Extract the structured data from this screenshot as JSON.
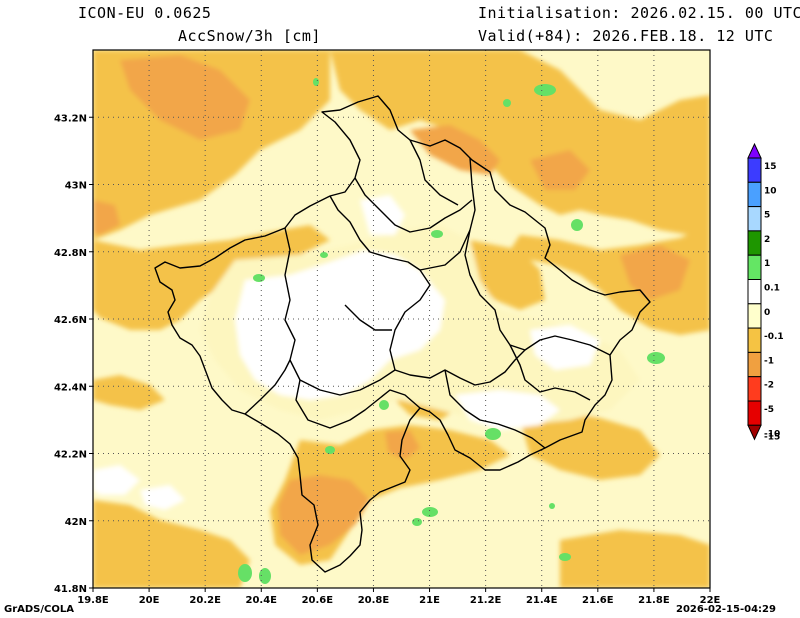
{
  "header": {
    "model": "ICON-EU 0.0625",
    "variable": "AccSnow/3h [cm]",
    "init": "Initialisation: 2026.02.15. 00 UTC",
    "valid": "Valid(+84): 2026.FEB.18. 12 UTC"
  },
  "footer": {
    "credit": "GrADS/COLA",
    "timestamp": "2026-02-15-04:29"
  },
  "axes": {
    "lon_ticks": [
      "19.8E",
      "20E",
      "20.2E",
      "20.4E",
      "20.6E",
      "20.8E",
      "21E",
      "21.2E",
      "21.4E",
      "21.6E",
      "21.8E",
      "22E"
    ],
    "lat_ticks": [
      "41.8N",
      "42N",
      "42.2N",
      "42.4N",
      "42.6N",
      "42.8N",
      "43N",
      "43.2N"
    ],
    "lon_range": [
      19.8,
      22.0
    ],
    "lat_range": [
      41.8,
      43.4
    ]
  },
  "colorbar": {
    "labels": [
      "15",
      "10",
      "5",
      "2",
      "1",
      "0.1",
      "0",
      "-0.1",
      "-1",
      "-2",
      "-5",
      "-10",
      "-15"
    ],
    "colors": [
      "#7f00ff",
      "#3c3cff",
      "#4aa0ff",
      "#a8d8ff",
      "#1e9600",
      "#64e664",
      "#ffffff",
      "#ffffcc",
      "#f5c343",
      "#f0a040",
      "#ff3c1e",
      "#e60000",
      "#a00000"
    ]
  },
  "fill_colors": {
    "background": "#fef9c8",
    "light": "#fdf6bf",
    "orange": "#f4c24a",
    "dark_orange": "#f2a64a",
    "white": "#ffffff",
    "green": "#66e066"
  }
}
